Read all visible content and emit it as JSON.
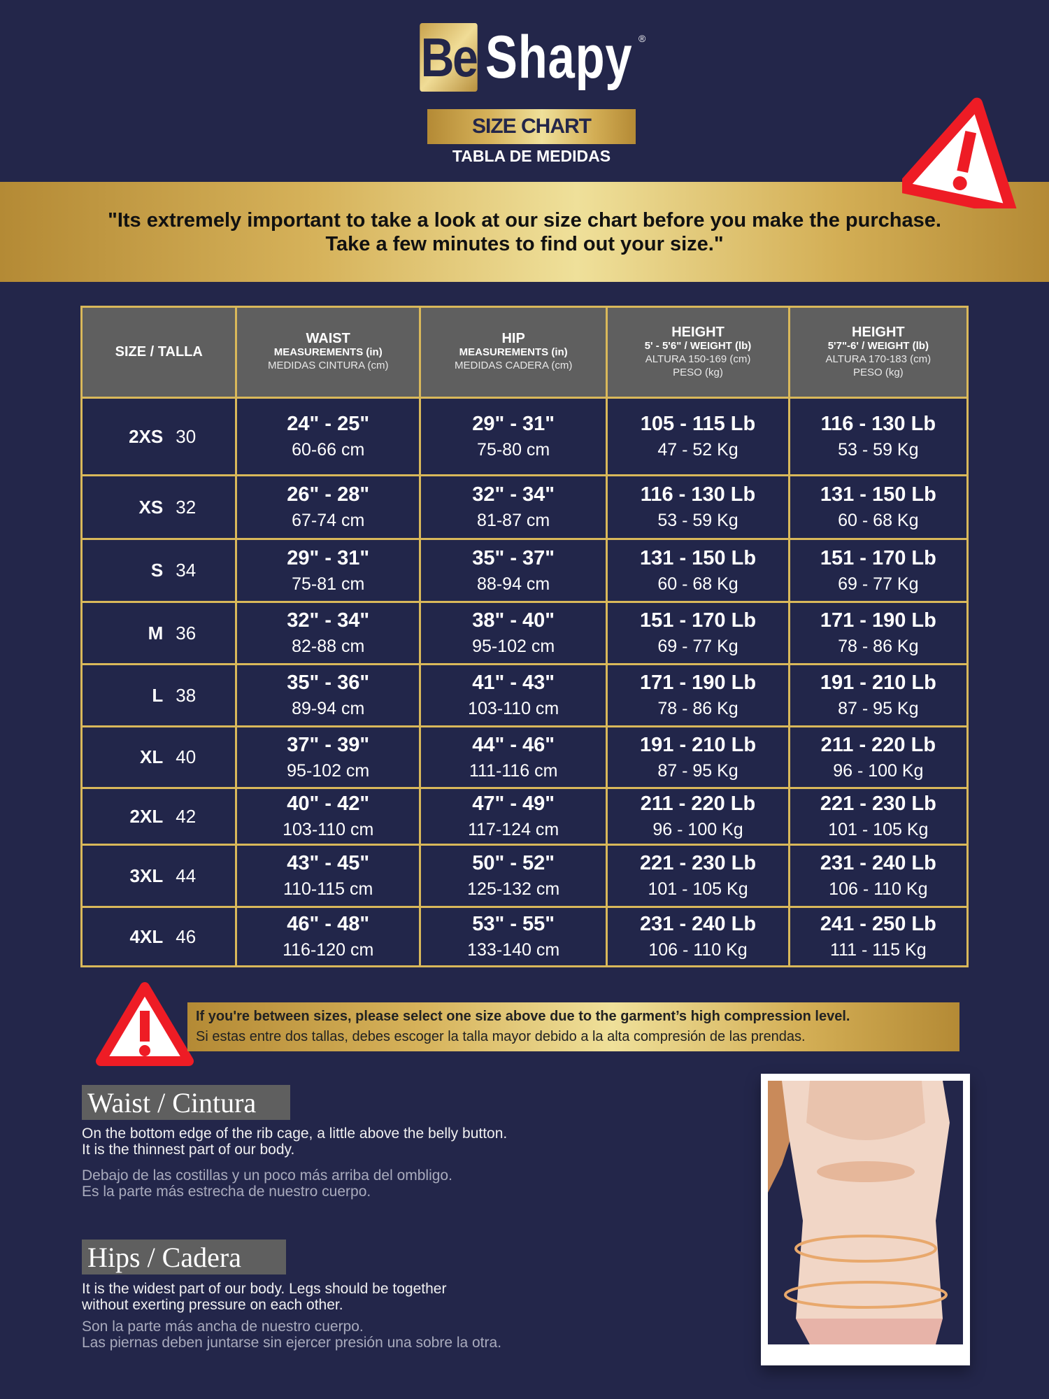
{
  "brand": {
    "be": "Be",
    "shapy": "Shapy",
    "reg": "®",
    "gold": "#d6b25a",
    "navy": "#23264a"
  },
  "header": {
    "badge": "SIZE CHART",
    "subtitle": "TABLA DE MEDIDAS"
  },
  "banner": {
    "line1": "\"Its extremely important to take a look at our size chart before you make the purchase.",
    "line2": "Take a few minutes to find out your size.\"",
    "icon": "warning-triangle-icon"
  },
  "table": {
    "headers": [
      {
        "title": "SIZE / TALLA"
      },
      {
        "title": "WAIST",
        "l2": "MEASUREMENTS (in)",
        "l3": "MEDIDAS CINTURA (cm)"
      },
      {
        "title": "HIP",
        "l2": "MEASUREMENTS (in)",
        "l3": "MEDIDAS CADERA (cm)"
      },
      {
        "title": "HEIGHT",
        "l2": "5' - 5'6\" / WEIGHT (lb)",
        "l3": "ALTURA 150-169 (cm)",
        "l4": "PESO (kg)"
      },
      {
        "title": "HEIGHT",
        "l2": "5'7\"-6' / WEIGHT (lb)",
        "l3": "ALTURA 170-183 (cm)",
        "l4": "PESO (kg)"
      }
    ],
    "rows": [
      {
        "size": "2XS",
        "num": "30",
        "waist": [
          "24\" - 25\"",
          "60-66 cm"
        ],
        "hip": [
          "29\" - 31\"",
          "75-80 cm"
        ],
        "h1": [
          "105 - 115 Lb",
          "47 - 52 Kg"
        ],
        "h2": [
          "116 - 130 Lb",
          "53 - 59 Kg"
        ]
      },
      {
        "size": "XS",
        "num": "32",
        "waist": [
          "26\" - 28\"",
          "67-74 cm"
        ],
        "hip": [
          "32\" - 34\"",
          "81-87 cm"
        ],
        "h1": [
          "116 - 130 Lb",
          "53 - 59 Kg"
        ],
        "h2": [
          "131 - 150 Lb",
          "60 - 68 Kg"
        ]
      },
      {
        "size": "S",
        "num": "34",
        "waist": [
          "29\" - 31\"",
          "75-81 cm"
        ],
        "hip": [
          "35\" - 37\"",
          "88-94 cm"
        ],
        "h1": [
          "131 - 150 Lb",
          "60 - 68 Kg"
        ],
        "h2": [
          "151 - 170 Lb",
          "69 - 77 Kg"
        ]
      },
      {
        "size": "M",
        "num": "36",
        "waist": [
          "32\" - 34\"",
          "82-88 cm"
        ],
        "hip": [
          "38\" - 40\"",
          "95-102 cm"
        ],
        "h1": [
          "151 - 170 Lb",
          "69 - 77 Kg"
        ],
        "h2": [
          "171 - 190 Lb",
          "78 - 86 Kg"
        ]
      },
      {
        "size": "L",
        "num": "38",
        "waist": [
          "35\" - 36\"",
          "89-94 cm"
        ],
        "hip": [
          "41\" - 43\"",
          "103-110 cm"
        ],
        "h1": [
          "171 - 190 Lb",
          "78 - 86 Kg"
        ],
        "h2": [
          "191 - 210 Lb",
          "87 - 95 Kg"
        ]
      },
      {
        "size": "XL",
        "num": "40",
        "waist": [
          "37\" - 39\"",
          "95-102 cm"
        ],
        "hip": [
          "44\" - 46\"",
          "111-116 cm"
        ],
        "h1": [
          "191 - 210 Lb",
          "87 - 95 Kg"
        ],
        "h2": [
          "211 - 220 Lb",
          "96 - 100 Kg"
        ]
      },
      {
        "size": "2XL",
        "num": "42",
        "waist": [
          "40\" - 42\"",
          "103-110 cm"
        ],
        "hip": [
          "47\" - 49\"",
          "117-124 cm"
        ],
        "h1": [
          "211 - 220 Lb",
          "96 - 100 Kg"
        ],
        "h2": [
          "221 - 230 Lb",
          "101 - 105 Kg"
        ]
      },
      {
        "size": "3XL",
        "num": "44",
        "waist": [
          "43\" - 45\"",
          "110-115 cm"
        ],
        "hip": [
          "50\" - 52\"",
          "125-132 cm"
        ],
        "h1": [
          "221 - 230 Lb",
          "101 - 105 Kg"
        ],
        "h2": [
          "231 - 240 Lb",
          "106 - 110 Kg"
        ]
      },
      {
        "size": "4XL",
        "num": "46",
        "waist": [
          "46\" - 48\"",
          "116-120 cm"
        ],
        "hip": [
          "53\" - 55\"",
          "133-140 cm"
        ],
        "h1": [
          "231 - 240 Lb",
          "106 - 110 Kg"
        ],
        "h2": [
          "241 - 250 Lb",
          "111 - 115 Kg"
        ]
      }
    ]
  },
  "notice": {
    "en": "If you're between sizes, please select one size above due to the garment’s high compression level.",
    "es": "Si estas entre dos tallas, debes escoger la talla mayor debido a la alta compresión de las prendas."
  },
  "waist": {
    "label": "Waist / Cintura",
    "en1": "On the bottom edge of the rib cage, a little above the belly button.",
    "en2": "It is the thinnest part of our body.",
    "es1": "Debajo de las costillas y un poco más arriba del ombligo.",
    "es2": "Es la parte más estrecha de nuestro cuerpo."
  },
  "hips": {
    "label": "Hips / Cadera",
    "en1": "It is the widest part of our body. Legs should be together",
    "en2": "without exerting pressure on each other.",
    "es1": "Son la parte más ancha de nuestro cuerpo.",
    "es2": "Las piernas deben juntarse sin ejercer presión una sobre la otra."
  }
}
